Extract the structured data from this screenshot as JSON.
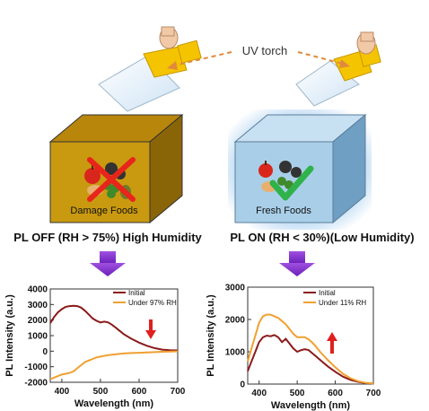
{
  "labels": {
    "uv_torch": "UV torch",
    "damage_box": "Damage Foods",
    "fresh_box": "Fresh Foods",
    "left_caption": "PL OFF (RH > 75%) High Humidity",
    "right_caption": "PL ON (RH < 30%)(Low Humidity)"
  },
  "colors": {
    "damage_front": "#c99a10",
    "damage_top": "#b8860b",
    "damage_side": "#8a6508",
    "fresh_front": "#a9cfe8",
    "fresh_top": "#c7e0f2",
    "fresh_side": "#6f9fc3",
    "arrow_purple": "#8a2be2",
    "initial_series": "#8b1a1a",
    "humid_series": "#f0a030",
    "red_arrow": "#e02020",
    "torch_dashed": "#e08a3c",
    "cross": "#e8251b",
    "check": "#2fb24a"
  },
  "icons": [
    "uv-torch-icon",
    "food-icon",
    "cross-icon",
    "check-icon",
    "down-arrow-icon"
  ],
  "chart_data": [
    {
      "type": "line",
      "xlabel": "Wavelength (nm)",
      "ylabel": "PL Intensity (a.u.)",
      "xlim": [
        370,
        700
      ],
      "ylim": [
        -2000,
        4000
      ],
      "xticks": [
        400,
        500,
        600,
        700
      ],
      "yticks": [
        -2000,
        -1000,
        0,
        1000,
        2000,
        3000,
        4000
      ],
      "legend_position": "top-right",
      "indicator": "down",
      "series": [
        {
          "name": "Initial",
          "color": "#8b1a1a",
          "x": [
            370,
            380,
            390,
            400,
            410,
            420,
            430,
            440,
            450,
            460,
            470,
            480,
            490,
            500,
            510,
            520,
            530,
            540,
            550,
            560,
            580,
            600,
            620,
            640,
            660,
            680,
            700
          ],
          "y": [
            1800,
            2200,
            2500,
            2700,
            2850,
            2900,
            2920,
            2900,
            2800,
            2600,
            2350,
            2100,
            1950,
            1850,
            1900,
            1850,
            1700,
            1500,
            1300,
            1100,
            800,
            550,
            350,
            200,
            100,
            60,
            50
          ]
        },
        {
          "name": "Under 97% RH",
          "color": "#f0a030",
          "x": [
            370,
            380,
            390,
            400,
            410,
            420,
            430,
            440,
            450,
            460,
            470,
            480,
            490,
            500,
            520,
            540,
            560,
            580,
            600,
            620,
            640,
            660,
            680,
            700
          ],
          "y": [
            -1800,
            -1700,
            -1600,
            -1500,
            -1450,
            -1400,
            -1300,
            -1100,
            -900,
            -700,
            -600,
            -500,
            -400,
            -350,
            -250,
            -200,
            -150,
            -120,
            -100,
            -80,
            -60,
            -40,
            -20,
            -10
          ]
        }
      ]
    },
    {
      "type": "line",
      "xlabel": "Wavelength (nm)",
      "ylabel": "PL Intensity (a.u.)",
      "xlim": [
        370,
        700
      ],
      "ylim": [
        0,
        3000
      ],
      "xticks": [
        400,
        500,
        600,
        700
      ],
      "yticks": [
        0,
        1000,
        2000,
        3000
      ],
      "legend_position": "top-right",
      "indicator": "up",
      "series": [
        {
          "name": "Initial",
          "color": "#8b1a1a",
          "x": [
            370,
            380,
            390,
            400,
            410,
            420,
            430,
            440,
            450,
            460,
            470,
            480,
            490,
            500,
            510,
            520,
            530,
            540,
            550,
            560,
            580,
            600,
            620,
            640,
            660,
            680,
            700
          ],
          "y": [
            400,
            700,
            1000,
            1300,
            1450,
            1500,
            1480,
            1520,
            1450,
            1300,
            1400,
            1250,
            1100,
            1000,
            1050,
            1080,
            1050,
            950,
            850,
            750,
            550,
            380,
            230,
            130,
            70,
            30,
            20
          ]
        },
        {
          "name": "Under 11% RH",
          "color": "#f0a030",
          "x": [
            370,
            380,
            390,
            400,
            410,
            420,
            430,
            440,
            450,
            460,
            470,
            480,
            490,
            500,
            510,
            520,
            530,
            540,
            550,
            560,
            580,
            600,
            620,
            640,
            660,
            680,
            700
          ],
          "y": [
            700,
            1100,
            1500,
            1900,
            2100,
            2150,
            2150,
            2100,
            2050,
            1950,
            1850,
            1700,
            1550,
            1450,
            1450,
            1450,
            1380,
            1280,
            1150,
            1000,
            750,
            520,
            320,
            180,
            90,
            40,
            20
          ]
        }
      ]
    }
  ]
}
